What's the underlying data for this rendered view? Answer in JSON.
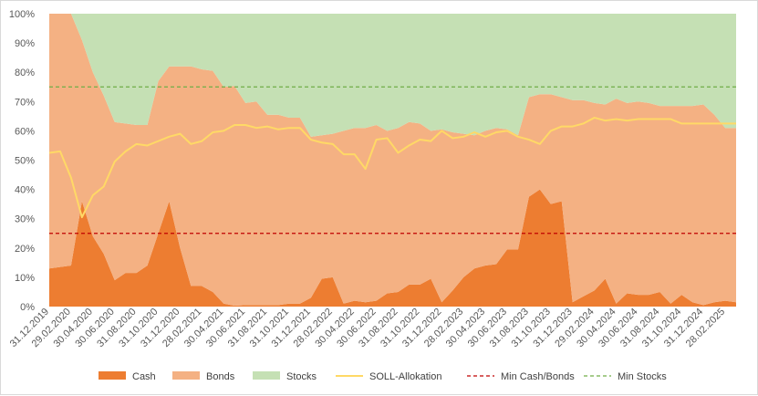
{
  "chart_data": {
    "type": "area",
    "stacked": true,
    "y_axis": {
      "ylim": [
        0,
        100
      ],
      "ticks": [
        "0%",
        "10%",
        "20%",
        "30%",
        "40%",
        "50%",
        "60%",
        "70%",
        "80%",
        "90%",
        "100%"
      ]
    },
    "x_tick_labels": [
      "31.12.2019",
      "29.02.2020",
      "30.04.2020",
      "30.06.2020",
      "31.08.2020",
      "31.10.2020",
      "31.12.2020",
      "28.02.2021",
      "30.04.2021",
      "30.06.2021",
      "31.08.2021",
      "31.10.2021",
      "31.12.2021",
      "28.02.2022",
      "30.04.2022",
      "30.06.2022",
      "31.08.2022",
      "31.10.2022",
      "31.12.2022",
      "28.02.2023",
      "30.04.2023",
      "30.06.2023",
      "31.08.2023",
      "31.10.2023",
      "31.12.2023",
      "29.02.2024",
      "30.04.2024",
      "30.06.2024",
      "31.08.2024",
      "31.10.2024",
      "31.12.2024",
      "28.02.2025"
    ],
    "series": [
      {
        "name": "Cash",
        "kind": "area",
        "color": "#ed7d31",
        "values": [
          13,
          13.5,
          14,
          36,
          24,
          18,
          9,
          11.5,
          11.5,
          14,
          25,
          36,
          20,
          7,
          7,
          5,
          1,
          0.3,
          0.5,
          0.5,
          0.5,
          0.5,
          1,
          1,
          3,
          9.5,
          10,
          1,
          2,
          1.5,
          2,
          4.5,
          5,
          7.5,
          7.5,
          9.5,
          1.5,
          5.5,
          10,
          13,
          14,
          14.5,
          19.5,
          19.5,
          37.5,
          40,
          35,
          36,
          1.5,
          3.5,
          5.5,
          9.5,
          1,
          4.5,
          4,
          4,
          5,
          1,
          4,
          1.5,
          0.5,
          1.5,
          2,
          1.5
        ]
      },
      {
        "name": "Bonds",
        "kind": "area",
        "color": "#f4b183",
        "values": [
          87,
          86.5,
          86,
          55,
          56,
          54,
          54,
          51,
          50.5,
          48,
          52,
          46,
          62,
          75,
          74,
          75.5,
          74,
          75,
          69,
          69.5,
          65,
          65,
          63.5,
          63.5,
          55,
          49,
          49,
          59,
          59,
          59.5,
          60,
          55.5,
          56,
          55.5,
          55,
          50.5,
          59,
          54,
          49,
          45.5,
          46,
          46.5,
          41,
          39,
          34,
          32.5,
          37.5,
          35.5,
          69,
          67,
          64,
          59.5,
          70,
          65,
          66,
          65.5,
          63.5,
          67.5,
          64.5,
          67,
          68.5,
          64,
          59,
          59.5
        ]
      },
      {
        "name": "Stocks",
        "kind": "area",
        "color": "#c5e0b4",
        "values": [
          0,
          0,
          0,
          9,
          20,
          28,
          37,
          37.5,
          38,
          38,
          23,
          18,
          18,
          18,
          19,
          19.5,
          25,
          24.7,
          30.5,
          30,
          34.5,
          34.5,
          35.5,
          35.5,
          42,
          41.5,
          41,
          40,
          39,
          39,
          38,
          40,
          39,
          37,
          37.5,
          40,
          39.5,
          40.5,
          41,
          41.5,
          40,
          39,
          39.5,
          41.5,
          28.5,
          27.5,
          27.5,
          28.5,
          29.5,
          29.5,
          30.5,
          31,
          29,
          30.5,
          30,
          30.5,
          31.5,
          31.5,
          31.5,
          31.5,
          31,
          34.5,
          39,
          39
        ]
      },
      {
        "name": "SOLL-Allokation",
        "kind": "line",
        "color": "#ffd966",
        "values": [
          52.5,
          53,
          44,
          30.5,
          38,
          41,
          49.5,
          53,
          55.5,
          55,
          56.5,
          58,
          59,
          55.5,
          56.5,
          59.5,
          60,
          62,
          62,
          61,
          61.5,
          60.5,
          61,
          61,
          57,
          56,
          55.5,
          52,
          52,
          47,
          57,
          57.5,
          52.5,
          55,
          57,
          56.5,
          60,
          57.5,
          58,
          59.5,
          58,
          59.5,
          60,
          58,
          57,
          55.5,
          60,
          61.5,
          61.5,
          62.5,
          64.5,
          63.5,
          64,
          63.5,
          64,
          64,
          64,
          64,
          62.5,
          62.5,
          62.5,
          62.5,
          62.5,
          62.5
        ]
      },
      {
        "name": "Min Cash/Bonds",
        "kind": "dashed-line",
        "color": "#c00000",
        "value": 25
      },
      {
        "name": "Min Stocks",
        "kind": "dashed-line",
        "color": "#70ad47",
        "value": 75
      }
    ]
  },
  "legend": {
    "cash": "Cash",
    "bonds": "Bonds",
    "stocks": "Stocks",
    "soll": "SOLL-Allokation",
    "min_cash_bonds": "Min Cash/Bonds",
    "min_stocks": "Min Stocks"
  }
}
